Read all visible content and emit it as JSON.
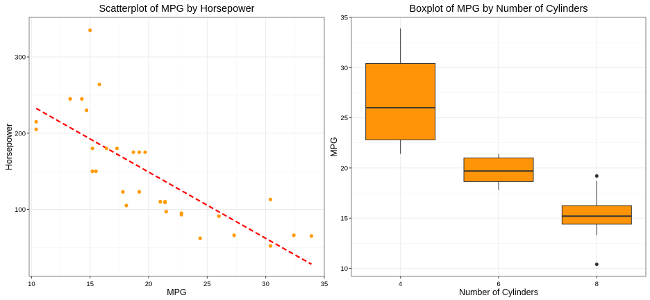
{
  "chart_data": [
    {
      "type": "scatter",
      "title": "Scatterplot of MPG by Horsepower",
      "xlabel": "MPG",
      "ylabel": "Horsepower",
      "xlim": [
        9.8,
        35.0
      ],
      "ylim": [
        12,
        352
      ],
      "x_ticks": [
        10,
        15,
        20,
        25,
        30,
        35
      ],
      "y_ticks": [
        100,
        200,
        300
      ],
      "grid": true,
      "point_color": "#ff9900",
      "points": [
        {
          "x": 21.0,
          "y": 110
        },
        {
          "x": 21.0,
          "y": 110
        },
        {
          "x": 22.8,
          "y": 93
        },
        {
          "x": 21.4,
          "y": 110
        },
        {
          "x": 18.7,
          "y": 175
        },
        {
          "x": 18.1,
          "y": 105
        },
        {
          "x": 14.3,
          "y": 245
        },
        {
          "x": 24.4,
          "y": 62
        },
        {
          "x": 22.8,
          "y": 95
        },
        {
          "x": 19.2,
          "y": 123
        },
        {
          "x": 17.8,
          "y": 123
        },
        {
          "x": 16.4,
          "y": 180
        },
        {
          "x": 17.3,
          "y": 180
        },
        {
          "x": 15.2,
          "y": 180
        },
        {
          "x": 10.4,
          "y": 205
        },
        {
          "x": 10.4,
          "y": 215
        },
        {
          "x": 14.7,
          "y": 230
        },
        {
          "x": 32.4,
          "y": 66
        },
        {
          "x": 30.4,
          "y": 52
        },
        {
          "x": 33.9,
          "y": 65
        },
        {
          "x": 21.5,
          "y": 97
        },
        {
          "x": 15.5,
          "y": 150
        },
        {
          "x": 15.2,
          "y": 150
        },
        {
          "x": 13.3,
          "y": 245
        },
        {
          "x": 19.2,
          "y": 175
        },
        {
          "x": 27.3,
          "y": 66
        },
        {
          "x": 26.0,
          "y": 91
        },
        {
          "x": 30.4,
          "y": 113
        },
        {
          "x": 15.8,
          "y": 264
        },
        {
          "x": 19.7,
          "y": 175
        },
        {
          "x": 15.0,
          "y": 335
        },
        {
          "x": 21.4,
          "y": 109
        }
      ],
      "trend_line": {
        "style": "dashed",
        "color": "#ff0000",
        "x": [
          10.4,
          33.9
        ],
        "y": [
          232.5,
          28.0
        ]
      }
    },
    {
      "type": "boxplot",
      "title": "Boxplot of MPG by Number of Cylinders",
      "xlabel": "Number of Cylinders",
      "ylabel": "MPG",
      "ylim": [
        9.2,
        35.0
      ],
      "y_ticks": [
        10,
        15,
        20,
        25,
        30,
        35
      ],
      "grid": true,
      "fill_color": "#ff9408",
      "categories": [
        "4",
        "6",
        "8"
      ],
      "boxes": [
        {
          "category": "4",
          "min": 21.4,
          "q1": 22.8,
          "median": 26.0,
          "q3": 30.4,
          "max": 33.9,
          "outliers": []
        },
        {
          "category": "6",
          "min": 17.8,
          "q1": 18.65,
          "median": 19.7,
          "q3": 21.0,
          "max": 21.4,
          "outliers": []
        },
        {
          "category": "8",
          "min": 13.3,
          "q1": 14.4,
          "median": 15.2,
          "q3": 16.25,
          "max": 18.7,
          "outliers": [
            10.4,
            19.2
          ]
        }
      ]
    }
  ]
}
